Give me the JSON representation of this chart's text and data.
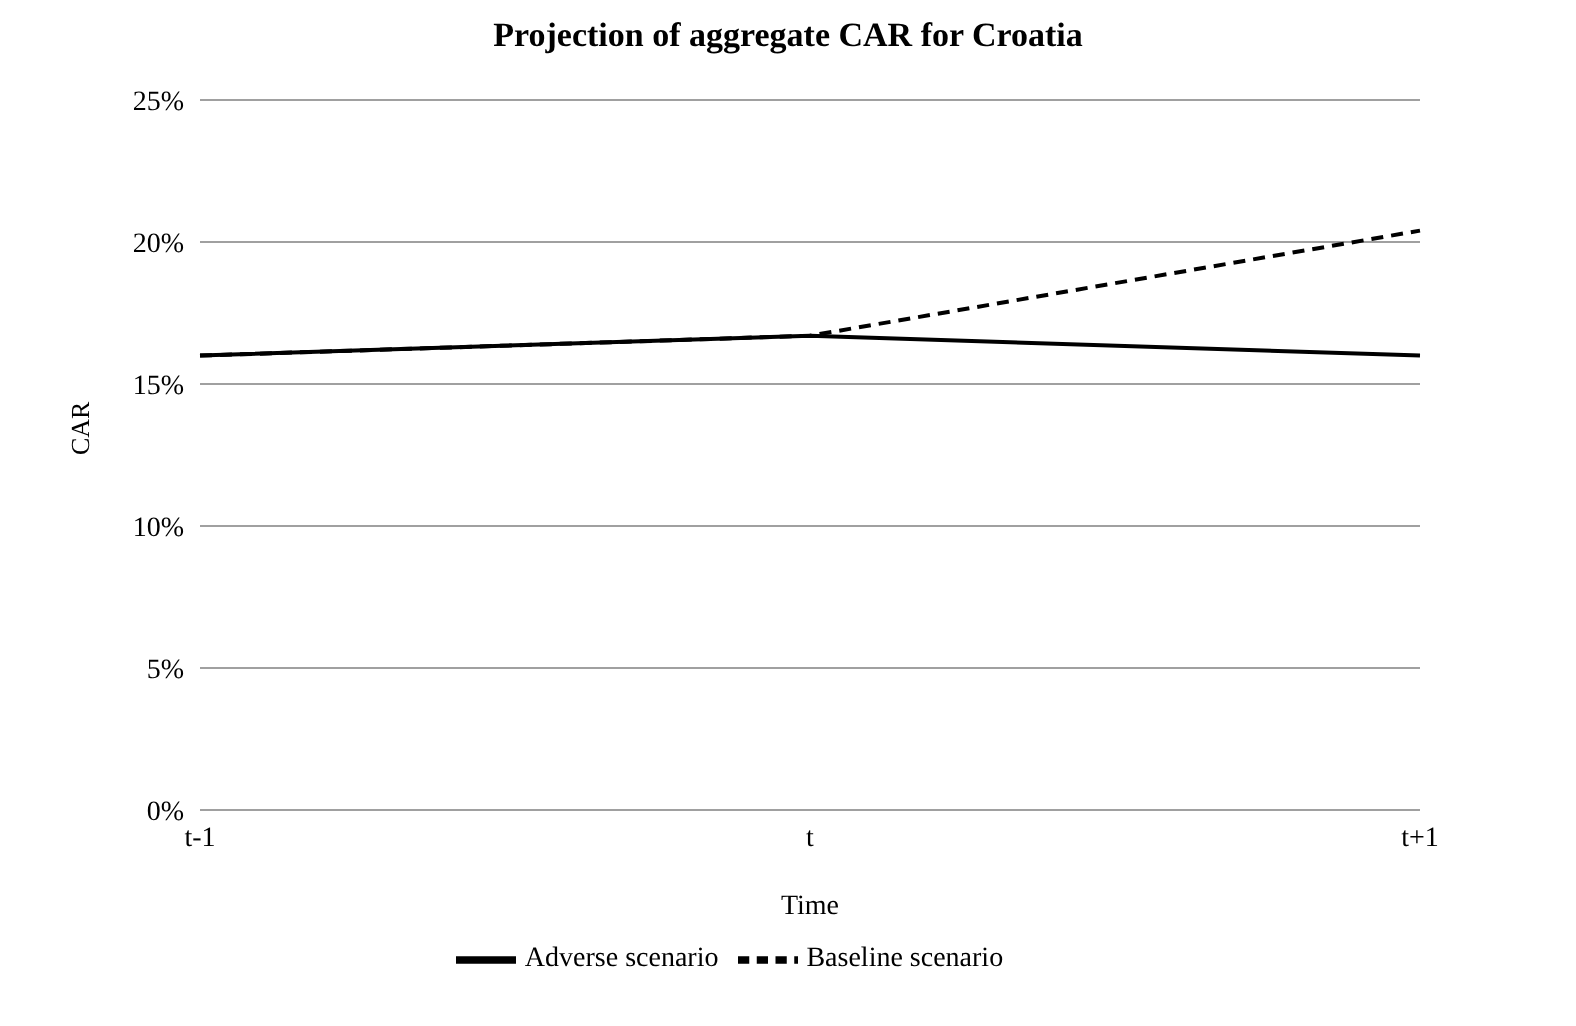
{
  "chart_data": {
    "type": "line",
    "title": "Projection of aggregate CAR for Croatia",
    "xlabel": "Time",
    "ylabel": "CAR",
    "categories": [
      "t-1",
      "t",
      "t+1"
    ],
    "series": [
      {
        "name": "Baseline scenario",
        "color": "#000000",
        "values": [
          16.0,
          16.7,
          20.4
        ],
        "line_style": "dashed"
      },
      {
        "name": "Adverse scenario",
        "color": "#000000",
        "values": [
          16.0,
          16.7,
          16.0
        ],
        "line_style": "solid"
      }
    ],
    "ylim": [
      0,
      25
    ],
    "yticks": [
      {
        "value": 0,
        "label": "0%"
      },
      {
        "value": 5,
        "label": "5%"
      },
      {
        "value": 10,
        "label": "10%"
      },
      {
        "value": 15,
        "label": "15%"
      },
      {
        "value": 20,
        "label": "20%"
      },
      {
        "value": 25,
        "label": "25%"
      }
    ],
    "grid": "y",
    "legend": "bottom",
    "marker": "none"
  }
}
